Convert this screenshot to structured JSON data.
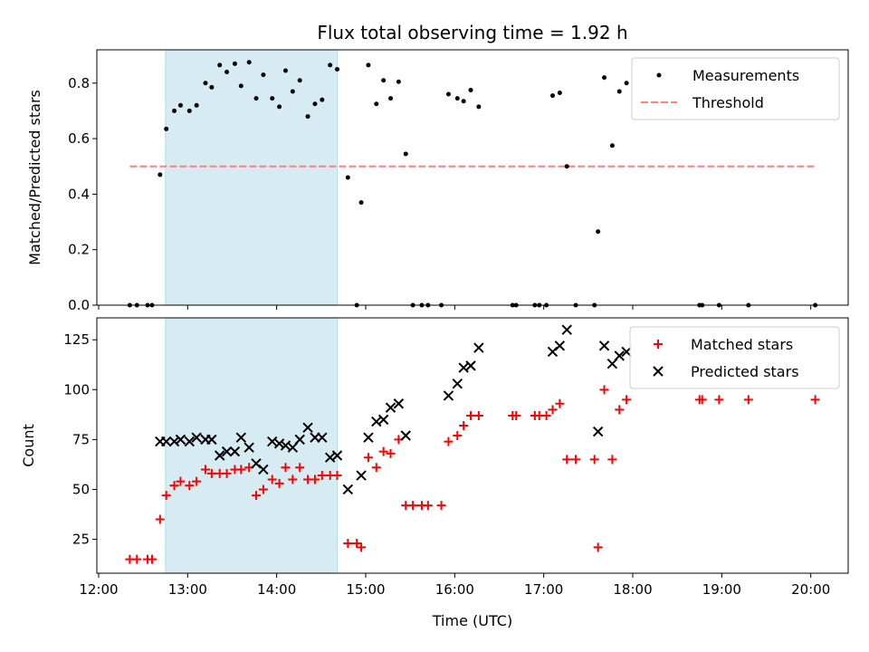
{
  "chart_data": [
    {
      "type": "scatter",
      "title": "Flux total observing time = 1.92 h",
      "xlabel": "",
      "ylabel": "Matched/Predicted stars",
      "xlim": [
        11.98,
        20.42
      ],
      "ylim": [
        0,
        0.92
      ],
      "yticks": [
        0.0,
        0.2,
        0.4,
        0.6,
        0.8
      ],
      "ytick_labels": [
        "0.0",
        "0.2",
        "0.4",
        "0.6",
        "0.8"
      ],
      "grid": false,
      "legend_position": "upper right",
      "shaded_span": {
        "x": [
          12.75,
          14.68
        ],
        "color": "#add8e6"
      },
      "threshold": {
        "name": "Threshold",
        "y": 0.5,
        "x": [
          12.35,
          20.05
        ],
        "color": "#ff7f7f",
        "style": "dashed"
      },
      "series": [
        {
          "name": "Measurements",
          "marker": "dot",
          "color": "#000000",
          "points": [
            [
              12.35,
              0.0
            ],
            [
              12.43,
              0.0
            ],
            [
              12.55,
              0.0
            ],
            [
              12.6,
              0.0
            ],
            [
              12.69,
              0.47
            ],
            [
              12.76,
              0.635
            ],
            [
              12.85,
              0.7
            ],
            [
              12.92,
              0.72
            ],
            [
              13.02,
              0.7
            ],
            [
              13.1,
              0.72
            ],
            [
              13.2,
              0.8
            ],
            [
              13.27,
              0.785
            ],
            [
              13.36,
              0.865
            ],
            [
              13.44,
              0.84
            ],
            [
              13.53,
              0.87
            ],
            [
              13.6,
              0.79
            ],
            [
              13.69,
              0.875
            ],
            [
              13.77,
              0.745
            ],
            [
              13.85,
              0.83
            ],
            [
              13.95,
              0.745
            ],
            [
              14.03,
              0.715
            ],
            [
              14.1,
              0.845
            ],
            [
              14.18,
              0.77
            ],
            [
              14.26,
              0.81
            ],
            [
              14.35,
              0.68
            ],
            [
              14.43,
              0.725
            ],
            [
              14.51,
              0.74
            ],
            [
              14.6,
              0.865
            ],
            [
              14.68,
              0.85
            ],
            [
              14.8,
              0.46
            ],
            [
              14.9,
              0.0
            ],
            [
              14.95,
              0.37
            ],
            [
              15.03,
              0.865
            ],
            [
              15.12,
              0.725
            ],
            [
              15.2,
              0.81
            ],
            [
              15.28,
              0.745
            ],
            [
              15.37,
              0.805
            ],
            [
              15.45,
              0.545
            ],
            [
              15.53,
              0.0
            ],
            [
              15.63,
              0.0
            ],
            [
              15.7,
              0.0
            ],
            [
              15.85,
              0.0
            ],
            [
              15.93,
              0.76
            ],
            [
              16.03,
              0.745
            ],
            [
              16.1,
              0.735
            ],
            [
              16.18,
              0.775
            ],
            [
              16.27,
              0.715
            ],
            [
              16.65,
              0.0
            ],
            [
              16.69,
              0.0
            ],
            [
              16.9,
              0.0
            ],
            [
              16.95,
              0.0
            ],
            [
              17.03,
              0.0
            ],
            [
              17.1,
              0.755
            ],
            [
              17.18,
              0.765
            ],
            [
              17.26,
              0.5
            ],
            [
              17.36,
              0.0
            ],
            [
              17.57,
              0.0
            ],
            [
              17.61,
              0.265
            ],
            [
              17.68,
              0.82
            ],
            [
              17.77,
              0.575
            ],
            [
              17.85,
              0.77
            ],
            [
              17.93,
              0.8
            ],
            [
              18.75,
              0.0
            ],
            [
              18.78,
              0.0
            ],
            [
              18.97,
              0.0
            ],
            [
              19.3,
              0.0
            ],
            [
              20.05,
              0.0
            ]
          ]
        }
      ]
    },
    {
      "type": "scatter",
      "title": "",
      "xlabel": "Time (UTC)",
      "ylabel": "Count",
      "xlim": [
        11.98,
        20.42
      ],
      "ylim": [
        8,
        136
      ],
      "yticks": [
        25,
        50,
        75,
        100,
        125
      ],
      "ytick_labels": [
        "25",
        "50",
        "75",
        "100",
        "125"
      ],
      "xticks": [
        12,
        13,
        14,
        15,
        16,
        17,
        18,
        19,
        20
      ],
      "xtick_labels": [
        "12:00",
        "13:00",
        "14:00",
        "15:00",
        "16:00",
        "17:00",
        "18:00",
        "19:00",
        "20:00"
      ],
      "grid": false,
      "legend_position": "upper right",
      "shaded_span": {
        "x": [
          12.75,
          14.68
        ],
        "color": "#add8e6"
      },
      "series": [
        {
          "name": "Matched stars",
          "marker": "plus",
          "color": "#ff0000",
          "points": [
            [
              12.35,
              15
            ],
            [
              12.43,
              15
            ],
            [
              12.55,
              15
            ],
            [
              12.6,
              15
            ],
            [
              12.69,
              35
            ],
            [
              12.76,
              47
            ],
            [
              12.85,
              52
            ],
            [
              12.92,
              54
            ],
            [
              13.02,
              52
            ],
            [
              13.1,
              54
            ],
            [
              13.2,
              60
            ],
            [
              13.27,
              58
            ],
            [
              13.36,
              58
            ],
            [
              13.44,
              58
            ],
            [
              13.53,
              60
            ],
            [
              13.6,
              60
            ],
            [
              13.69,
              61
            ],
            [
              13.77,
              47
            ],
            [
              13.85,
              50
            ],
            [
              13.95,
              55
            ],
            [
              14.03,
              53
            ],
            [
              14.1,
              61
            ],
            [
              14.18,
              55
            ],
            [
              14.26,
              61
            ],
            [
              14.35,
              55
            ],
            [
              14.43,
              55
            ],
            [
              14.51,
              57
            ],
            [
              14.6,
              57
            ],
            [
              14.68,
              57
            ],
            [
              14.8,
              23
            ],
            [
              14.9,
              23
            ],
            [
              14.95,
              21
            ],
            [
              15.03,
              66
            ],
            [
              15.12,
              61
            ],
            [
              15.2,
              69
            ],
            [
              15.28,
              68
            ],
            [
              15.37,
              75
            ],
            [
              15.45,
              42
            ],
            [
              15.53,
              42
            ],
            [
              15.63,
              42
            ],
            [
              15.7,
              42
            ],
            [
              15.85,
              42
            ],
            [
              15.93,
              74
            ],
            [
              16.03,
              77
            ],
            [
              16.1,
              82
            ],
            [
              16.18,
              87
            ],
            [
              16.27,
              87
            ],
            [
              16.65,
              87
            ],
            [
              16.69,
              87
            ],
            [
              16.9,
              87
            ],
            [
              16.95,
              87
            ],
            [
              17.03,
              87
            ],
            [
              17.1,
              90
            ],
            [
              17.18,
              93
            ],
            [
              17.26,
              65
            ],
            [
              17.36,
              65
            ],
            [
              17.57,
              65
            ],
            [
              17.61,
              21
            ],
            [
              17.68,
              100
            ],
            [
              17.77,
              65
            ],
            [
              17.85,
              90
            ],
            [
              17.93,
              95
            ],
            [
              18.75,
              95
            ],
            [
              18.78,
              95
            ],
            [
              18.97,
              95
            ],
            [
              19.3,
              95
            ],
            [
              20.05,
              95
            ]
          ]
        },
        {
          "name": "Predicted stars",
          "marker": "x",
          "color": "#000000",
          "points": [
            [
              12.69,
              74
            ],
            [
              12.76,
              74
            ],
            [
              12.85,
              74
            ],
            [
              12.92,
              75
            ],
            [
              13.02,
              74
            ],
            [
              13.1,
              76
            ],
            [
              13.2,
              75
            ],
            [
              13.27,
              75
            ],
            [
              13.36,
              67
            ],
            [
              13.44,
              69
            ],
            [
              13.53,
              69
            ],
            [
              13.6,
              76
            ],
            [
              13.69,
              71
            ],
            [
              13.77,
              63
            ],
            [
              13.85,
              60
            ],
            [
              13.95,
              74
            ],
            [
              14.03,
              73
            ],
            [
              14.1,
              72
            ],
            [
              14.18,
              71
            ],
            [
              14.26,
              75
            ],
            [
              14.35,
              81
            ],
            [
              14.43,
              76
            ],
            [
              14.51,
              76
            ],
            [
              14.6,
              66
            ],
            [
              14.68,
              67
            ],
            [
              14.8,
              50
            ],
            [
              14.95,
              57
            ],
            [
              15.03,
              76
            ],
            [
              15.12,
              84
            ],
            [
              15.2,
              85
            ],
            [
              15.28,
              91
            ],
            [
              15.37,
              93
            ],
            [
              15.45,
              77
            ],
            [
              15.93,
              97
            ],
            [
              16.03,
              103
            ],
            [
              16.1,
              111
            ],
            [
              16.18,
              112
            ],
            [
              16.27,
              121
            ],
            [
              17.1,
              119
            ],
            [
              17.18,
              122
            ],
            [
              17.26,
              130
            ],
            [
              17.61,
              79
            ],
            [
              17.68,
              122
            ],
            [
              17.77,
              113
            ],
            [
              17.85,
              117
            ],
            [
              17.93,
              119
            ]
          ]
        }
      ]
    }
  ]
}
